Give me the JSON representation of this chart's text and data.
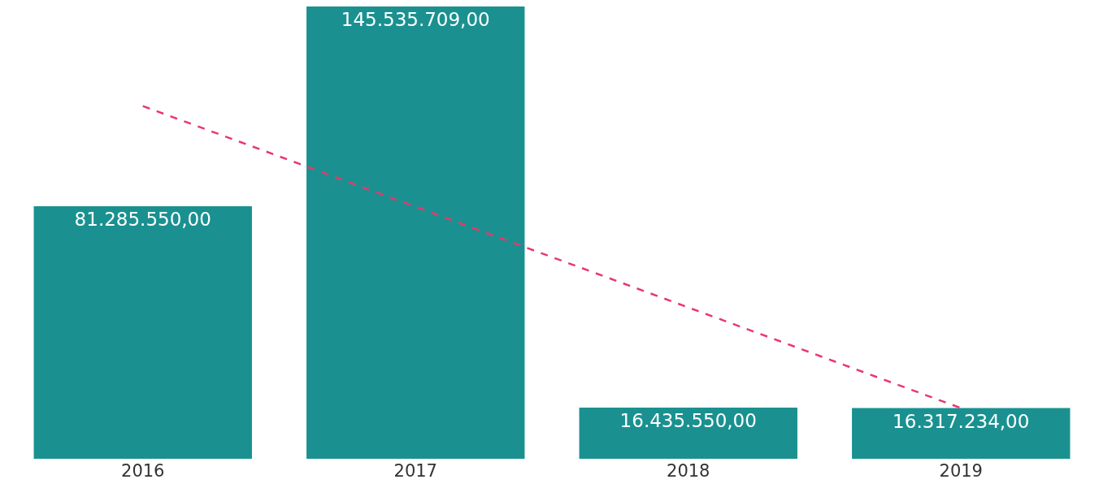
{
  "chart_data": {
    "type": "bar",
    "categories": [
      "2016",
      "2017",
      "2018",
      "2019"
    ],
    "series": [
      {
        "color": "#1a9190",
        "values": [
          81285550,
          145535709,
          16435550,
          16317234
        ],
        "value_labels": [
          "81.285.550,00",
          "145.535.709,00",
          "16.435.550,00",
          "16.317.234,00"
        ]
      },
      {
        "type": "line",
        "color": "#e8386b",
        "line_style": "dashed",
        "marker": "none",
        "values": [
          113500000,
          81100000,
          48700000,
          16300000
        ]
      }
    ],
    "tick_labels": "x",
    "grid": false,
    "legend": false
  }
}
